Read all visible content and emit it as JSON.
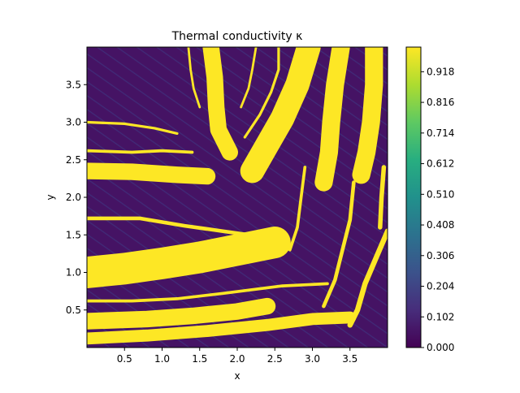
{
  "chart_data": {
    "type": "heatmap",
    "title": "Thermal conductivity κ",
    "xlabel": "x",
    "ylabel": "y",
    "xlim": [
      0,
      4.0
    ],
    "ylim": [
      0,
      4.0
    ],
    "x_ticks": [
      0.5,
      1.0,
      1.5,
      2.0,
      2.5,
      3.0,
      3.5
    ],
    "x_tick_labels": [
      "0.5",
      "1.0",
      "1.5",
      "2.0",
      "2.5",
      "3.0",
      "3.5"
    ],
    "y_ticks": [
      0.5,
      1.0,
      1.5,
      2.0,
      2.5,
      3.0,
      3.5
    ],
    "y_tick_labels": [
      "0.5",
      "1.0",
      "1.5",
      "2.0",
      "2.5",
      "3.0",
      "3.5"
    ],
    "colormap": "viridis",
    "color_range": [
      0.0,
      1.0
    ],
    "colorbar_ticks": [
      0.0,
      0.102,
      0.204,
      0.306,
      0.408,
      0.51,
      0.612,
      0.714,
      0.816,
      0.918
    ],
    "colorbar_tick_labels": [
      "0.000",
      "0.102",
      "0.204",
      "0.306",
      "0.408",
      "0.510",
      "0.612",
      "0.714",
      "0.816",
      "0.918"
    ],
    "background_value": 0.05,
    "channel_value": 1.0,
    "channels": [
      {
        "points": [
          [
            0.0,
            2.35
          ],
          [
            0.6,
            2.34
          ],
          [
            1.2,
            2.3
          ],
          [
            1.6,
            2.28
          ]
        ],
        "width": 0.22
      },
      {
        "points": [
          [
            0.0,
            1.0
          ],
          [
            0.5,
            1.05
          ],
          [
            1.0,
            1.12
          ],
          [
            1.5,
            1.2
          ],
          [
            2.0,
            1.3
          ],
          [
            2.5,
            1.4
          ]
        ],
        "width": 0.42
      },
      {
        "points": [
          [
            0.0,
            0.35
          ],
          [
            0.8,
            0.38
          ],
          [
            1.4,
            0.42
          ],
          [
            2.0,
            0.48
          ],
          [
            2.4,
            0.55
          ]
        ],
        "width": 0.22
      },
      {
        "points": [
          [
            0.0,
            0.12
          ],
          [
            0.8,
            0.16
          ],
          [
            1.6,
            0.22
          ],
          [
            2.4,
            0.3
          ],
          [
            3.0,
            0.38
          ],
          [
            3.5,
            0.4
          ]
        ],
        "width": 0.16
      },
      {
        "points": [
          [
            1.65,
            4.0
          ],
          [
            1.7,
            3.6
          ],
          [
            1.72,
            3.2
          ],
          [
            1.75,
            2.9
          ],
          [
            1.9,
            2.6
          ]
        ],
        "width": 0.22
      },
      {
        "points": [
          [
            2.95,
            4.0
          ],
          [
            2.8,
            3.5
          ],
          [
            2.6,
            3.05
          ],
          [
            2.4,
            2.7
          ],
          [
            2.2,
            2.35
          ]
        ],
        "width": 0.32
      },
      {
        "points": [
          [
            3.38,
            4.0
          ],
          [
            3.3,
            3.5
          ],
          [
            3.25,
            3.0
          ],
          [
            3.22,
            2.6
          ],
          [
            3.15,
            2.2
          ]
        ],
        "width": 0.24
      },
      {
        "points": [
          [
            3.82,
            4.0
          ],
          [
            3.82,
            3.5
          ],
          [
            3.78,
            3.0
          ],
          [
            3.72,
            2.6
          ],
          [
            3.65,
            2.3
          ]
        ],
        "width": 0.24
      },
      {
        "points": [
          [
            4.0,
            1.55
          ],
          [
            3.85,
            1.2
          ],
          [
            3.7,
            0.85
          ],
          [
            3.6,
            0.5
          ],
          [
            3.5,
            0.3
          ]
        ],
        "width": 0.07
      },
      {
        "points": [
          [
            0.0,
            1.72
          ],
          [
            0.7,
            1.72
          ],
          [
            1.3,
            1.62
          ],
          [
            1.8,
            1.55
          ],
          [
            2.3,
            1.48
          ]
        ],
        "width": 0.05
      },
      {
        "points": [
          [
            0.0,
            0.62
          ],
          [
            0.6,
            0.62
          ],
          [
            1.2,
            0.65
          ],
          [
            1.8,
            0.72
          ],
          [
            2.6,
            0.82
          ],
          [
            3.2,
            0.85
          ]
        ],
        "width": 0.04
      },
      {
        "points": [
          [
            0.0,
            2.62
          ],
          [
            0.6,
            2.6
          ],
          [
            1.0,
            2.62
          ],
          [
            1.4,
            2.6
          ]
        ],
        "width": 0.04
      },
      {
        "points": [
          [
            0.0,
            3.0
          ],
          [
            0.5,
            2.98
          ],
          [
            0.9,
            2.92
          ],
          [
            1.2,
            2.85
          ]
        ],
        "width": 0.035
      },
      {
        "points": [
          [
            2.55,
            4.0
          ],
          [
            2.55,
            3.7
          ],
          [
            2.45,
            3.4
          ],
          [
            2.3,
            3.1
          ],
          [
            2.1,
            2.8
          ]
        ],
        "width": 0.035
      },
      {
        "points": [
          [
            2.25,
            4.0
          ],
          [
            2.2,
            3.7
          ],
          [
            2.15,
            3.45
          ],
          [
            2.05,
            3.2
          ]
        ],
        "width": 0.03
      },
      {
        "points": [
          [
            1.35,
            4.0
          ],
          [
            1.38,
            3.7
          ],
          [
            1.42,
            3.45
          ],
          [
            1.5,
            3.2
          ]
        ],
        "width": 0.03
      },
      {
        "points": [
          [
            3.55,
            2.2
          ],
          [
            3.5,
            1.7
          ],
          [
            3.4,
            1.3
          ],
          [
            3.3,
            0.9
          ],
          [
            3.15,
            0.55
          ]
        ],
        "width": 0.05
      },
      {
        "points": [
          [
            3.95,
            2.4
          ],
          [
            3.92,
            2.0
          ],
          [
            3.9,
            1.6
          ]
        ],
        "width": 0.06
      },
      {
        "points": [
          [
            2.9,
            2.4
          ],
          [
            2.85,
            2.0
          ],
          [
            2.8,
            1.6
          ],
          [
            2.7,
            1.3
          ]
        ],
        "width": 0.04
      }
    ]
  }
}
